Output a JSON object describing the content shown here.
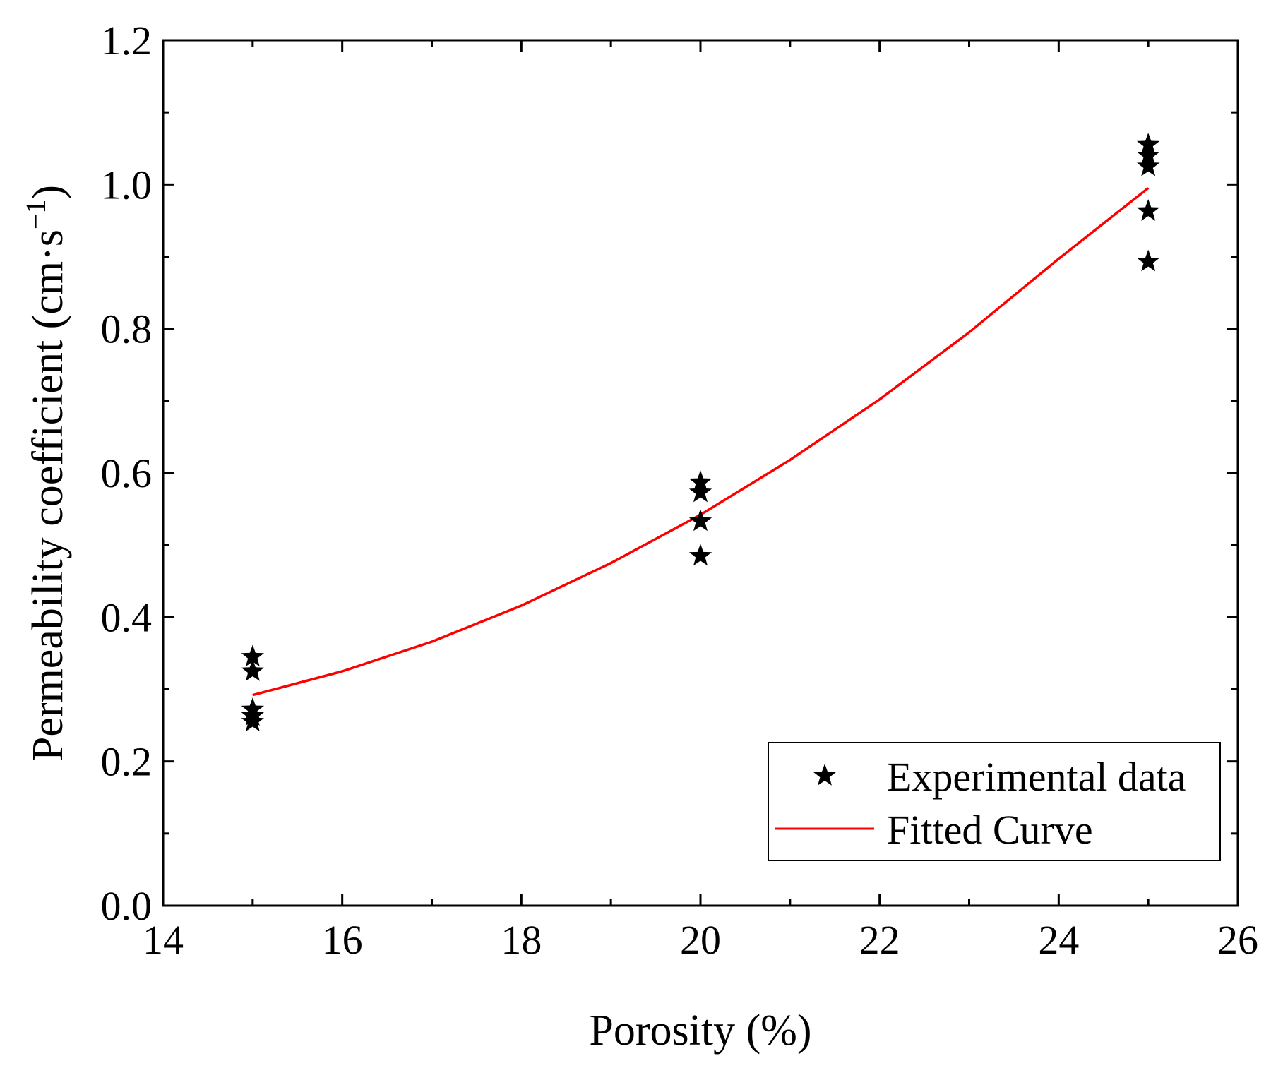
{
  "chart_data": {
    "type": "scatter",
    "title": "",
    "xlabel": "Porosity (%)",
    "ylabel": {
      "main": "Permeability coefficient (cm·s",
      "superscript": "−1",
      "close": ")"
    },
    "xlim": [
      14,
      26
    ],
    "ylim": [
      0.0,
      1.2
    ],
    "x_ticks": [
      {
        "value": 14,
        "label": "14"
      },
      {
        "value": 16,
        "label": "16"
      },
      {
        "value": 18,
        "label": "18"
      },
      {
        "value": 20,
        "label": "20"
      },
      {
        "value": 22,
        "label": "22"
      },
      {
        "value": 24,
        "label": "24"
      },
      {
        "value": 26,
        "label": "26"
      }
    ],
    "y_ticks": [
      {
        "value": 0.0,
        "label": "0.0"
      },
      {
        "value": 0.2,
        "label": "0.2"
      },
      {
        "value": 0.4,
        "label": "0.4"
      },
      {
        "value": 0.6,
        "label": "0.6"
      },
      {
        "value": 0.8,
        "label": "0.8"
      },
      {
        "value": 1.0,
        "label": "1.0"
      },
      {
        "value": 1.2,
        "label": "1.2"
      }
    ],
    "x_minor_step": 1,
    "y_minor_step": 0.1,
    "grid": false,
    "legend_position": "bottom-right",
    "series": [
      {
        "name": "Experimental data",
        "kind": "scatter",
        "marker": "star",
        "color": "#000000",
        "points": [
          {
            "x": 15,
            "y": 0.345
          },
          {
            "x": 15,
            "y": 0.325
          },
          {
            "x": 15,
            "y": 0.272
          },
          {
            "x": 15,
            "y": 0.263
          },
          {
            "x": 15,
            "y": 0.255
          },
          {
            "x": 20,
            "y": 0.587
          },
          {
            "x": 20,
            "y": 0.573
          },
          {
            "x": 20,
            "y": 0.533
          },
          {
            "x": 20,
            "y": 0.485
          },
          {
            "x": 25,
            "y": 1.055
          },
          {
            "x": 25,
            "y": 1.04
          },
          {
            "x": 25,
            "y": 1.025
          },
          {
            "x": 25,
            "y": 0.963
          },
          {
            "x": 25,
            "y": 0.893
          }
        ]
      },
      {
        "name": "Fitted Curve",
        "kind": "line",
        "color": "#ff0000",
        "x": [
          15,
          16,
          17,
          18,
          19,
          20,
          21,
          22,
          23,
          24,
          25
        ],
        "y": [
          0.292,
          0.325,
          0.366,
          0.416,
          0.475,
          0.542,
          0.618,
          0.702,
          0.795,
          0.897,
          0.995
        ]
      }
    ]
  }
}
